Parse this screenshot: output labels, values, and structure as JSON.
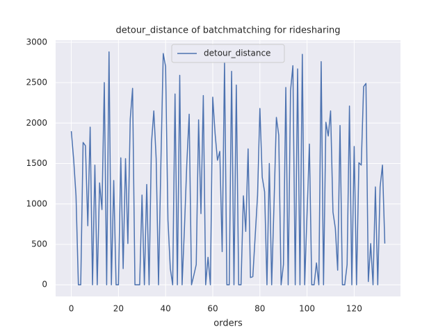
{
  "chart_data": {
    "type": "line",
    "title": "detour_distance of batchmatching for ridesharing",
    "xlabel": "orders",
    "x": [
      0,
      1,
      2,
      3,
      4,
      5,
      6,
      7,
      8,
      9,
      10,
      11,
      12,
      13,
      14,
      15,
      16,
      17,
      18,
      19,
      20,
      21,
      22,
      23,
      24,
      25,
      26,
      27,
      28,
      29,
      30,
      31,
      32,
      33,
      34,
      35,
      36,
      37,
      38,
      39,
      40,
      41,
      42,
      43,
      44,
      45,
      46,
      47,
      48,
      49,
      50,
      51,
      52,
      53,
      54,
      55,
      56,
      57,
      58,
      59,
      60,
      61,
      62,
      63,
      64,
      65,
      66,
      67,
      68,
      69,
      70,
      71,
      72,
      73,
      74,
      75,
      76,
      77,
      78,
      79,
      80,
      81,
      82,
      83,
      84,
      85,
      86,
      87,
      88,
      89,
      90,
      91,
      92,
      93,
      94,
      95,
      96,
      97,
      98,
      99,
      100,
      101,
      102,
      103,
      104,
      105,
      106,
      107,
      108,
      109,
      110,
      111,
      112,
      113,
      114,
      115,
      116,
      117,
      118,
      119,
      120,
      121,
      122,
      123,
      124,
      125,
      126,
      127,
      128,
      129,
      130,
      131,
      132,
      133
    ],
    "series": [
      {
        "name": "detour_distance",
        "color": "#4c72b0",
        "values": [
          1900,
          1550,
          1100,
          0,
          0,
          1760,
          1720,
          730,
          1950,
          0,
          1480,
          0,
          1260,
          930,
          2500,
          0,
          2880,
          0,
          1290,
          0,
          0,
          1570,
          200,
          1560,
          510,
          2050,
          2430,
          0,
          0,
          0,
          1110,
          0,
          1240,
          0,
          1750,
          2150,
          1560,
          0,
          1500,
          2860,
          2700,
          800,
          200,
          0,
          2360,
          0,
          2590,
          0,
          700,
          1500,
          2110,
          0,
          120,
          250,
          2040,
          880,
          2340,
          0,
          340,
          0,
          2320,
          1870,
          1540,
          1650,
          410,
          2750,
          0,
          0,
          2640,
          0,
          2470,
          0,
          0,
          1100,
          660,
          1680,
          90,
          100,
          600,
          1100,
          2180,
          1330,
          1150,
          0,
          1500,
          0,
          1000,
          2070,
          1850,
          0,
          250,
          2440,
          0,
          2400,
          2710,
          0,
          2670,
          0,
          2850,
          0,
          870,
          1740,
          0,
          0,
          270,
          0,
          2760,
          0,
          2010,
          1840,
          2150,
          900,
          700,
          180,
          1970,
          0,
          0,
          250,
          2210,
          0,
          1710,
          0,
          1510,
          1480,
          2450,
          2490,
          40,
          510,
          0,
          1210,
          0,
          1210,
          1480,
          510
        ]
      }
    ],
    "xlim": [
      -6.65,
      139.65
    ],
    "ylim": [
      -144,
      3024
    ],
    "xticks": [
      0,
      20,
      40,
      60,
      80,
      100,
      120
    ],
    "yticks": [
      0,
      500,
      1000,
      1500,
      2000,
      2500,
      3000
    ],
    "grid": true,
    "legend": "upper center"
  }
}
